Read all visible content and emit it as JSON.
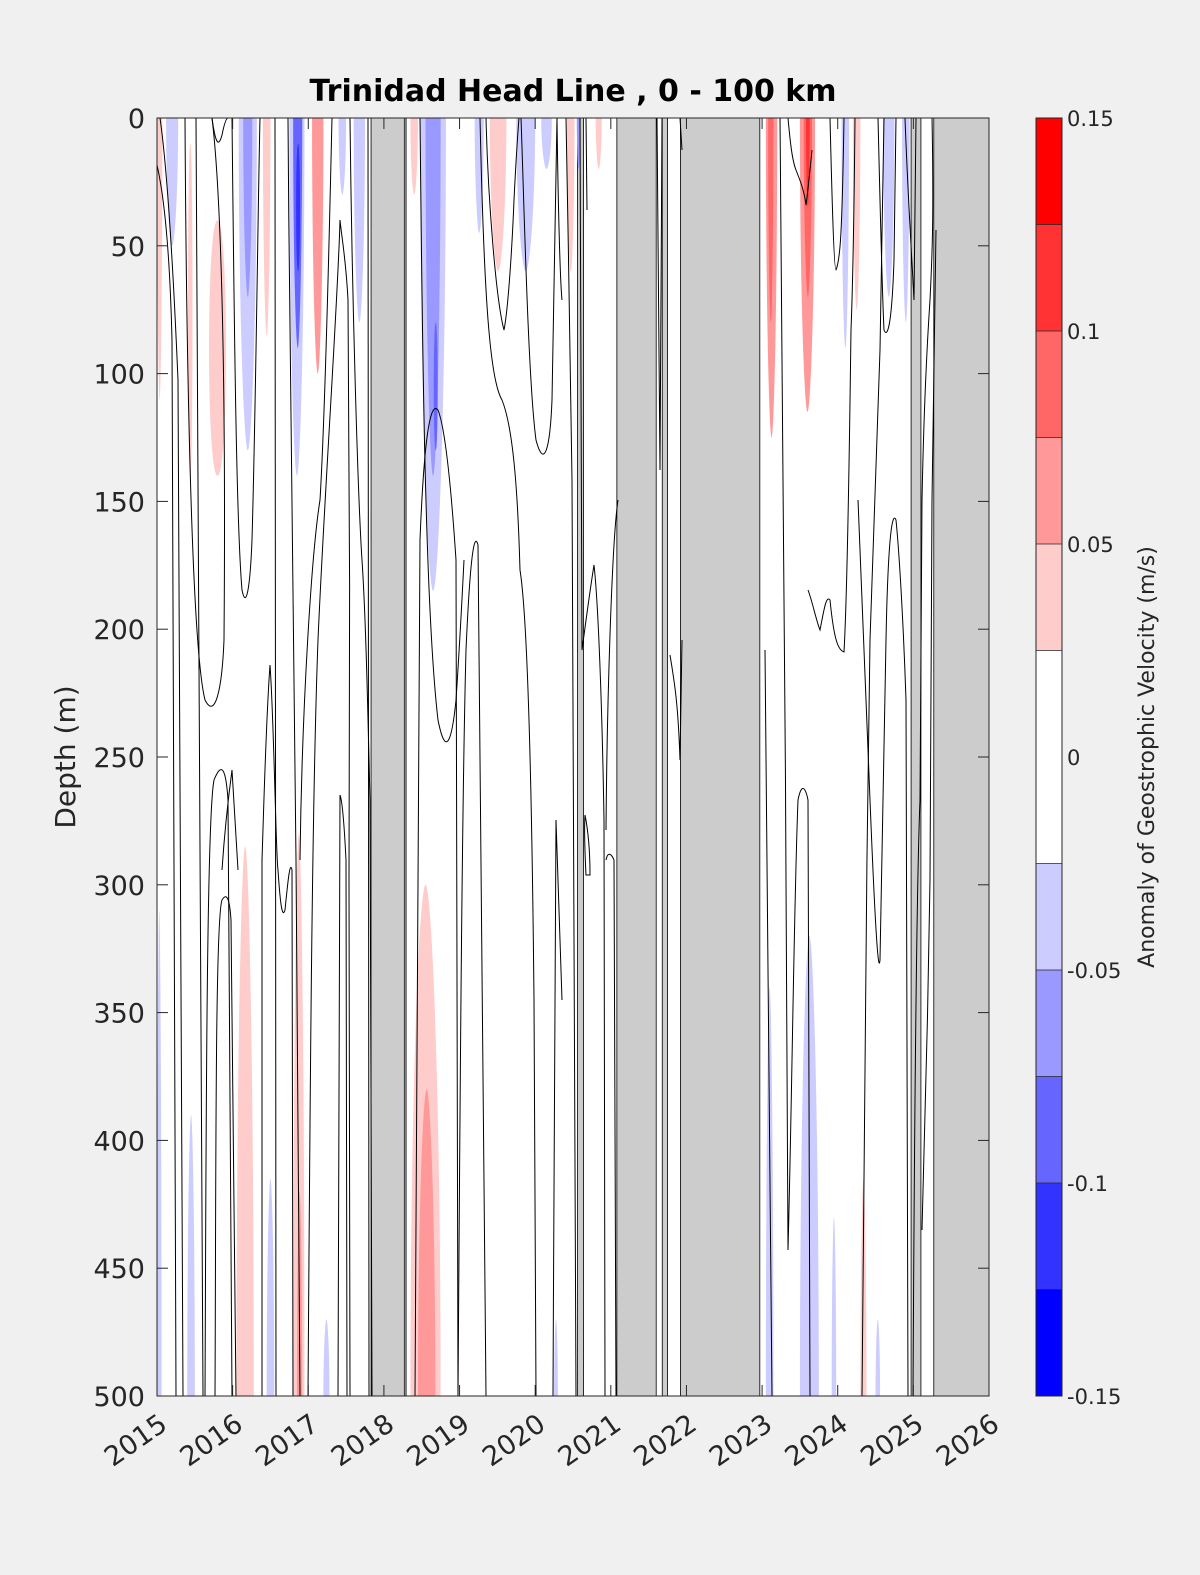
{
  "chart_data": {
    "type": "heatmap",
    "title": "Trinidad Head Line , 0 - 100 km",
    "xlabel": "",
    "ylabel": "Depth (m)",
    "colorbar_label": "Anomaly of Geostrophic Velocity (m/s)",
    "xlim": [
      2015,
      2026
    ],
    "ylim": [
      0,
      500
    ],
    "y_reversed": true,
    "xticks": [
      "2015",
      "2016",
      "2017",
      "2018",
      "2019",
      "2020",
      "2021",
      "2022",
      "2023",
      "2024",
      "2025",
      "2026"
    ],
    "yticks": [
      "0",
      "50",
      "100",
      "150",
      "200",
      "250",
      "300",
      "350",
      "400",
      "450",
      "500"
    ],
    "colorbar_ticks": [
      "0.15",
      "0.1",
      "0.05",
      "0",
      "-0.05",
      "-0.1",
      "-0.15"
    ],
    "colorbar_range": [
      -0.15,
      0.15
    ],
    "colorbar_levels": [
      {
        "from": 0.125,
        "to": 0.15,
        "color": "#ff0000"
      },
      {
        "from": 0.1,
        "to": 0.125,
        "color": "#ff3333"
      },
      {
        "from": 0.075,
        "to": 0.1,
        "color": "#ff6666"
      },
      {
        "from": 0.05,
        "to": 0.075,
        "color": "#ff9999"
      },
      {
        "from": 0.025,
        "to": 0.05,
        "color": "#ffcccc"
      },
      {
        "from": -0.025,
        "to": 0.025,
        "color": "#ffffff"
      },
      {
        "from": -0.05,
        "to": -0.025,
        "color": "#ccccff"
      },
      {
        "from": -0.075,
        "to": -0.05,
        "color": "#9999ff"
      },
      {
        "from": -0.1,
        "to": -0.075,
        "color": "#6666ff"
      },
      {
        "from": -0.125,
        "to": -0.1,
        "color": "#3333ff"
      },
      {
        "from": -0.15,
        "to": -0.125,
        "color": "#0000ff"
      }
    ],
    "no_data_color": "#cccccc",
    "no_data_periods": [
      [
        2017.83,
        2018.27
      ],
      [
        2021.08,
        2021.6
      ],
      [
        2021.68,
        2021.75
      ],
      [
        2021.92,
        2022.97
      ],
      [
        2024.97,
        2025.1
      ],
      [
        2025.27,
        2026.0
      ],
      [
        2020.56,
        2020.64
      ]
    ],
    "anomaly_patches": [
      {
        "x": [
          2015.0,
          2015.07
        ],
        "depth": [
          0,
          110
        ],
        "value": 0.03
      },
      {
        "x": [
          2015.12,
          2015.28
        ],
        "depth": [
          0,
          50
        ],
        "value": -0.03
      },
      {
        "x": [
          2015.4,
          2015.48
        ],
        "depth": [
          10,
          140
        ],
        "value": 0.03
      },
      {
        "x": [
          2015.65,
          2015.95
        ],
        "depth": [
          40,
          140
        ],
        "value": 0.03
      },
      {
        "x": [
          2016.08,
          2016.32
        ],
        "depth": [
          0,
          130
        ],
        "value": -0.04
      },
      {
        "x": [
          2016.14,
          2016.26
        ],
        "depth": [
          0,
          70
        ],
        "value": -0.06
      },
      {
        "x": [
          2016.4,
          2016.5
        ],
        "depth": [
          0,
          85
        ],
        "value": 0.03
      },
      {
        "x": [
          2016.75,
          2016.95
        ],
        "depth": [
          0,
          140
        ],
        "value": -0.05
      },
      {
        "x": [
          2016.8,
          2016.92
        ],
        "depth": [
          0,
          90
        ],
        "value": -0.08
      },
      {
        "x": [
          2016.83,
          2016.9
        ],
        "depth": [
          10,
          60
        ],
        "value": -0.11
      },
      {
        "x": [
          2017.05,
          2017.2
        ],
        "depth": [
          0,
          100
        ],
        "value": 0.05
      },
      {
        "x": [
          2017.4,
          2017.5
        ],
        "depth": [
          0,
          30
        ],
        "value": -0.03
      },
      {
        "x": [
          2017.6,
          2017.75
        ],
        "depth": [
          0,
          80
        ],
        "value": -0.03
      },
      {
        "x": [
          2018.35,
          2018.45
        ],
        "depth": [
          0,
          30
        ],
        "value": 0.03
      },
      {
        "x": [
          2018.48,
          2018.82
        ],
        "depth": [
          0,
          185
        ],
        "value": -0.04
      },
      {
        "x": [
          2018.55,
          2018.75
        ],
        "depth": [
          0,
          140
        ],
        "value": -0.06
      },
      {
        "x": [
          2018.65,
          2018.72
        ],
        "depth": [
          80,
          130
        ],
        "value": -0.08
      },
      {
        "x": [
          2019.2,
          2019.32
        ],
        "depth": [
          0,
          45
        ],
        "value": -0.03
      },
      {
        "x": [
          2019.4,
          2019.62
        ],
        "depth": [
          0,
          60
        ],
        "value": 0.03
      },
      {
        "x": [
          2019.75,
          2020.0
        ],
        "depth": [
          0,
          60
        ],
        "value": -0.03
      },
      {
        "x": [
          2020.08,
          2020.22
        ],
        "depth": [
          0,
          20
        ],
        "value": -0.04
      },
      {
        "x": [
          2020.42,
          2020.52
        ],
        "depth": [
          0,
          60
        ],
        "value": 0.03
      },
      {
        "x": [
          2020.55,
          2020.6
        ],
        "depth": [
          0,
          20
        ],
        "value": -0.07
      },
      {
        "x": [
          2020.8,
          2020.88
        ],
        "depth": [
          0,
          20
        ],
        "value": 0.03
      },
      {
        "x": [
          2023.05,
          2023.2
        ],
        "depth": [
          0,
          125
        ],
        "value": 0.06
      },
      {
        "x": [
          2023.08,
          2023.15
        ],
        "depth": [
          0,
          80
        ],
        "value": 0.09
      },
      {
        "x": [
          2023.5,
          2023.7
        ],
        "depth": [
          0,
          115
        ],
        "value": 0.06
      },
      {
        "x": [
          2023.55,
          2023.66
        ],
        "depth": [
          0,
          70
        ],
        "value": 0.09
      },
      {
        "x": [
          2023.58,
          2023.63
        ],
        "depth": [
          0,
          35
        ],
        "value": 0.12
      },
      {
        "x": [
          2024.05,
          2024.15
        ],
        "depth": [
          0,
          90
        ],
        "value": -0.04
      },
      {
        "x": [
          2024.2,
          2024.3
        ],
        "depth": [
          0,
          75
        ],
        "value": 0.03
      },
      {
        "x": [
          2024.6,
          2024.75
        ],
        "depth": [
          0,
          70
        ],
        "value": -0.03
      },
      {
        "x": [
          2024.85,
          2024.95
        ],
        "depth": [
          0,
          80
        ],
        "value": -0.04
      },
      {
        "x": [
          2015.0,
          2015.06
        ],
        "depth": [
          310,
          500
        ],
        "value": -0.03
      },
      {
        "x": [
          2015.4,
          2015.5
        ],
        "depth": [
          390,
          500
        ],
        "value": -0.03
      },
      {
        "x": [
          2016.05,
          2016.28
        ],
        "depth": [
          285,
          500
        ],
        "value": 0.03
      },
      {
        "x": [
          2016.45,
          2016.55
        ],
        "depth": [
          415,
          500
        ],
        "value": -0.03
      },
      {
        "x": [
          2016.8,
          2016.95
        ],
        "depth": [
          280,
          500
        ],
        "value": 0.03
      },
      {
        "x": [
          2016.85,
          2016.92
        ],
        "depth": [
          420,
          500
        ],
        "value": 0.06
      },
      {
        "x": [
          2017.2,
          2017.28
        ],
        "depth": [
          470,
          500
        ],
        "value": -0.03
      },
      {
        "x": [
          2018.35,
          2018.75
        ],
        "depth": [
          300,
          500
        ],
        "value": 0.04
      },
      {
        "x": [
          2018.45,
          2018.68
        ],
        "depth": [
          380,
          500
        ],
        "value": 0.06
      },
      {
        "x": [
          2020.25,
          2020.3
        ],
        "depth": [
          470,
          500
        ],
        "value": -0.03
      },
      {
        "x": [
          2023.05,
          2023.15
        ],
        "depth": [
          340,
          500
        ],
        "value": -0.03
      },
      {
        "x": [
          2023.5,
          2023.75
        ],
        "depth": [
          320,
          500
        ],
        "value": -0.03
      },
      {
        "x": [
          2023.56,
          2023.68
        ],
        "depth": [
          460,
          500
        ],
        "value": -0.05
      },
      {
        "x": [
          2023.92,
          2023.98
        ],
        "depth": [
          430,
          500
        ],
        "value": -0.03
      },
      {
        "x": [
          2024.3,
          2024.38
        ],
        "depth": [
          415,
          500
        ],
        "value": 0.03
      },
      {
        "x": [
          2024.5,
          2024.56
        ],
        "depth": [
          470,
          500
        ],
        "value": -0.03
      }
    ]
  }
}
